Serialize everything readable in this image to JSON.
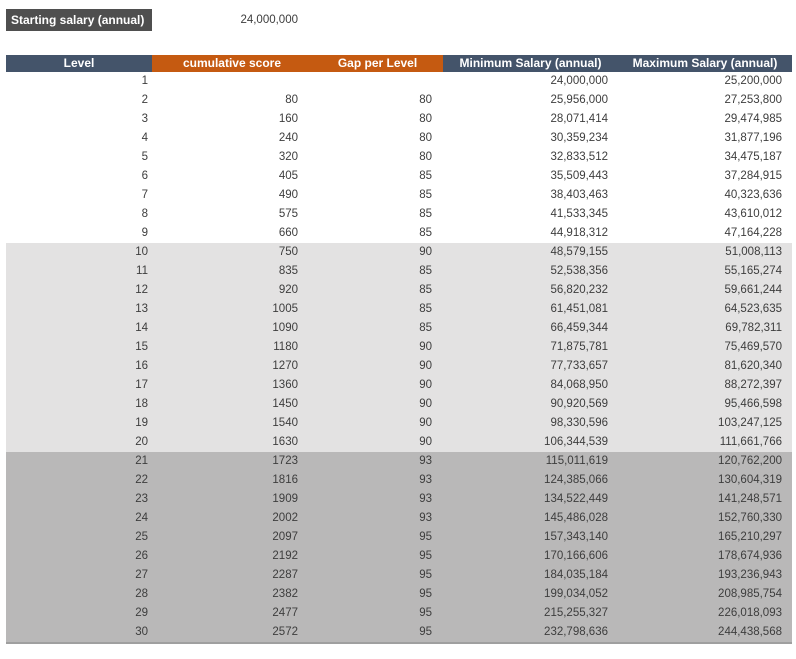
{
  "top": {
    "label": "Starting salary (annual)",
    "value": "24,000,000"
  },
  "table": {
    "columns": [
      "Level",
      "cumulative score",
      "Gap per Level",
      "Minimum Salary (annual)",
      "Maximum Salary (annual)"
    ],
    "rows": [
      [
        "1",
        "",
        "",
        "24,000,000",
        "25,200,000"
      ],
      [
        "2",
        "80",
        "80",
        "25,956,000",
        "27,253,800"
      ],
      [
        "3",
        "160",
        "80",
        "28,071,414",
        "29,474,985"
      ],
      [
        "4",
        "240",
        "80",
        "30,359,234",
        "31,877,196"
      ],
      [
        "5",
        "320",
        "80",
        "32,833,512",
        "34,475,187"
      ],
      [
        "6",
        "405",
        "85",
        "35,509,443",
        "37,284,915"
      ],
      [
        "7",
        "490",
        "85",
        "38,403,463",
        "40,323,636"
      ],
      [
        "8",
        "575",
        "85",
        "41,533,345",
        "43,610,012"
      ],
      [
        "9",
        "660",
        "85",
        "44,918,312",
        "47,164,228"
      ],
      [
        "10",
        "750",
        "90",
        "48,579,155",
        "51,008,113"
      ],
      [
        "11",
        "835",
        "85",
        "52,538,356",
        "55,165,274"
      ],
      [
        "12",
        "920",
        "85",
        "56,820,232",
        "59,661,244"
      ],
      [
        "13",
        "1005",
        "85",
        "61,451,081",
        "64,523,635"
      ],
      [
        "14",
        "1090",
        "85",
        "66,459,344",
        "69,782,311"
      ],
      [
        "15",
        "1180",
        "90",
        "71,875,781",
        "75,469,570"
      ],
      [
        "16",
        "1270",
        "90",
        "77,733,657",
        "81,620,340"
      ],
      [
        "17",
        "1360",
        "90",
        "84,068,950",
        "88,272,397"
      ],
      [
        "18",
        "1450",
        "90",
        "90,920,569",
        "95,466,598"
      ],
      [
        "19",
        "1540",
        "90",
        "98,330,596",
        "103,247,125"
      ],
      [
        "20",
        "1630",
        "90",
        "106,344,539",
        "111,661,766"
      ],
      [
        "21",
        "1723",
        "93",
        "115,011,619",
        "120,762,200"
      ],
      [
        "22",
        "1816",
        "93",
        "124,385,066",
        "130,604,319"
      ],
      [
        "23",
        "1909",
        "93",
        "134,522,449",
        "141,248,571"
      ],
      [
        "24",
        "2002",
        "93",
        "145,486,028",
        "152,760,330"
      ],
      [
        "25",
        "2097",
        "95",
        "157,343,140",
        "165,210,297"
      ],
      [
        "26",
        "2192",
        "95",
        "170,166,606",
        "178,674,936"
      ],
      [
        "27",
        "2287",
        "95",
        "184,035,184",
        "193,236,943"
      ],
      [
        "28",
        "2382",
        "95",
        "199,034,052",
        "208,985,754"
      ],
      [
        "29",
        "2477",
        "95",
        "215,255,327",
        "226,018,093"
      ],
      [
        "30",
        "2572",
        "95",
        "232,798,636",
        "244,438,568"
      ]
    ],
    "band_ranges": {
      "white_rows": "1-9",
      "light_gray_rows": "10-20",
      "dark_gray_rows": "21-30"
    }
  },
  "colors": {
    "label_bg": "#4f4f4f",
    "header_dark": "#44546a",
    "header_orange": "#c55a11",
    "band_light": "#e3e2e2",
    "band_dark": "#b9b8b8",
    "text": "#3d3d3d"
  }
}
